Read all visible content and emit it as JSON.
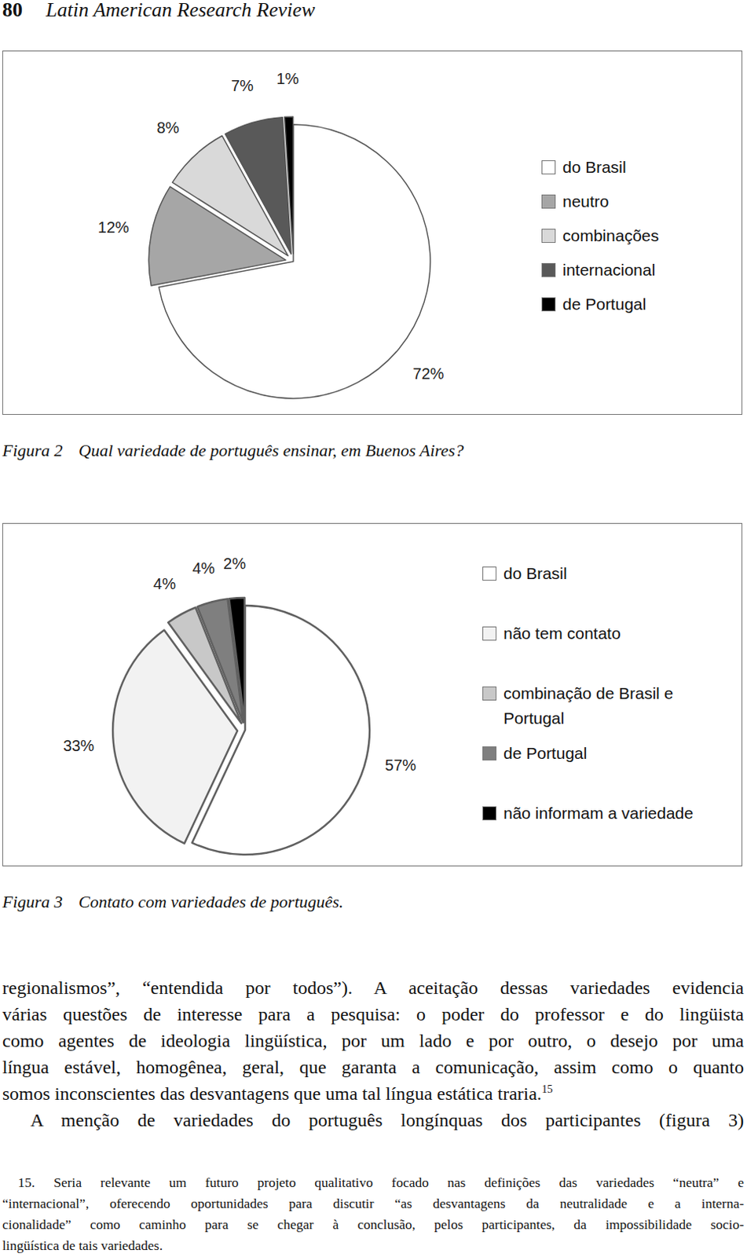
{
  "header": {
    "page_number": "80",
    "journal": "Latin American Research Review"
  },
  "chart_data": [
    {
      "type": "pie",
      "categories": [
        "do Brasil",
        "neutro",
        "combinações",
        "internacional",
        "de Portugal"
      ],
      "values": [
        72,
        12,
        8,
        7,
        1
      ],
      "value_labels": [
        "72%",
        "12%",
        "8%",
        "7%",
        "1%"
      ],
      "colors": [
        "#ffffff",
        "#a6a6a6",
        "#d9d9d9",
        "#595959",
        "#000000"
      ],
      "data_labels": true,
      "legend": "right"
    },
    {
      "type": "pie",
      "categories": [
        "do Brasil",
        "não tem contato",
        "combinação de Brasil e Portugal",
        "de Portugal",
        "não informam a variedade"
      ],
      "values": [
        57,
        33,
        4,
        4,
        2
      ],
      "value_labels": [
        "57%",
        "33%",
        "4%",
        "4%",
        "2%"
      ],
      "colors": [
        "#ffffff",
        "#f2f2f2",
        "#c8c8c8",
        "#7f7f7f",
        "#000000"
      ],
      "data_labels": true,
      "legend": "right"
    }
  ],
  "figures": [
    {
      "label": "Figura 2",
      "caption": "Qual variedade de português ensinar, em Buenos Aires?"
    },
    {
      "label": "Figura 3",
      "caption": "Contato com variedades de português."
    }
  ],
  "body": {
    "lines": [
      "regionalismos”, “entendida por todos”). A aceitação dessas variedades evidencia",
      "várias questões de interesse para a pesquisa: o poder do professor e do lingüista",
      "como agentes de ideologia lingüística, por um lado e por outro, o desejo por uma",
      "língua estável, homogênea, geral, que garanta a comunicação, assim como o quanto",
      "somos inconscientes das desvantagens que uma tal língua estática traria.",
      "A menção de variedades do português longínquas dos participantes (figura 3)"
    ],
    "footnote_marker": "15"
  },
  "footnote": {
    "number": "15.",
    "lines": [
      "Seria relevante um futuro projeto qualitativo focado nas definições das variedades “neutra” e",
      "“internacional”, oferecendo oportunidades para discutir “as desvantagens da neutralidade e a interna-",
      "cionalidade” como caminho para se chegar à conclusão, pelos participantes, da impossibilidade socio-",
      "lingüística de tais variedades."
    ]
  }
}
